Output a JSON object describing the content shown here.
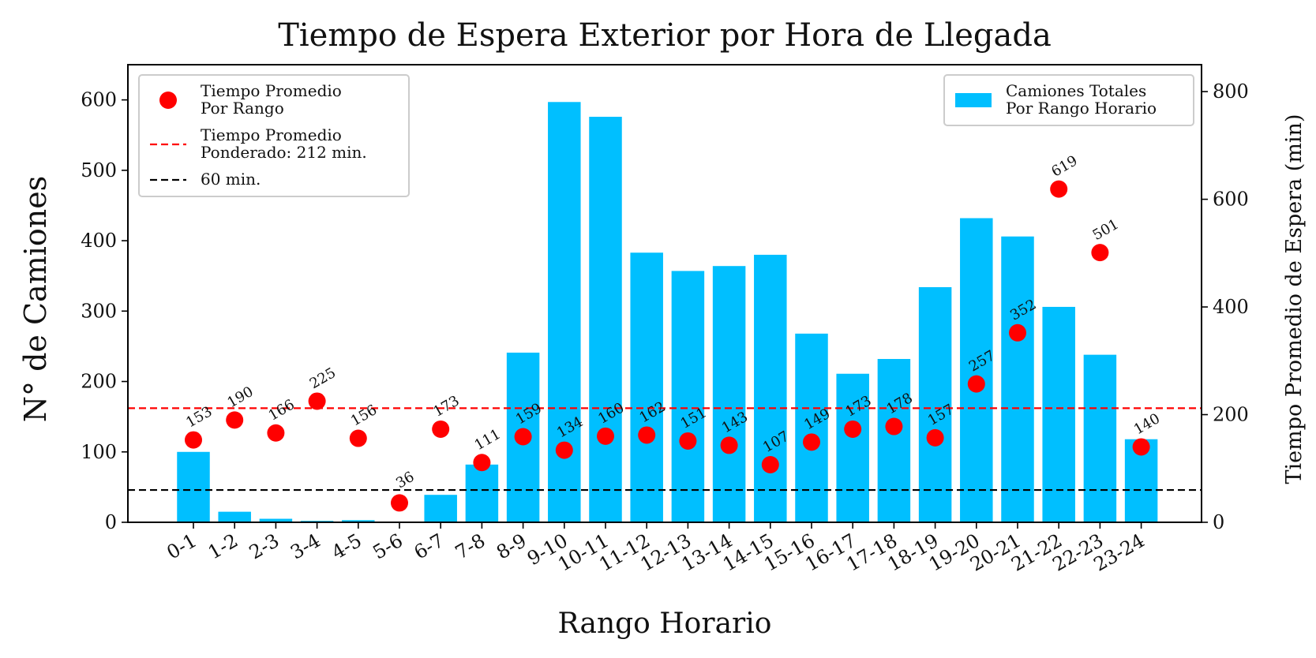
{
  "chart_data": {
    "type": "bar",
    "title": "Tiempo de Espera Exterior por Hora de Llegada",
    "xlabel": "Rango Horario",
    "ylabel": "N° de Camiones",
    "y2label": "Tiempo Promedio de Espera (min)",
    "categories": [
      "0-1",
      "1-2",
      "2-3",
      "3-4",
      "4-5",
      "5-6",
      "6-7",
      "7-8",
      "8-9",
      "9-10",
      "10-11",
      "11-12",
      "12-13",
      "13-14",
      "14-15",
      "15-16",
      "16-17",
      "17-18",
      "18-19",
      "19-20",
      "20-21",
      "21-22",
      "22-23",
      "23-24"
    ],
    "ylim": [
      0,
      650
    ],
    "y2lim": [
      0,
      850
    ],
    "yticks": [
      0,
      100,
      200,
      300,
      400,
      500,
      600
    ],
    "y2ticks": [
      0,
      200,
      400,
      600,
      800
    ],
    "grid": false,
    "series": [
      {
        "name": "Camiones Totales Por Rango Horario",
        "axis": "left",
        "type": "bar",
        "color": "#00bfff",
        "values": [
          100,
          15,
          5,
          2,
          3,
          0,
          39,
          82,
          241,
          597,
          576,
          383,
          357,
          364,
          380,
          268,
          211,
          232,
          334,
          432,
          406,
          306,
          238,
          118
        ]
      },
      {
        "name": "Tiempo Promedio Por Rango",
        "axis": "right",
        "type": "scatter",
        "color": "#ff0000",
        "values": [
          153,
          190,
          166,
          225,
          156,
          36,
          173,
          111,
          159,
          134,
          160,
          162,
          151,
          143,
          107,
          149,
          173,
          178,
          157,
          257,
          352,
          619,
          501,
          140
        ],
        "labels": [
          "153",
          "190",
          "166",
          "225",
          "156",
          "36",
          "173",
          "111",
          "159",
          "134",
          "160",
          "162",
          "151",
          "143",
          "107",
          "149",
          "173",
          "178",
          "157",
          "257",
          "352",
          "619",
          "501",
          "140"
        ]
      }
    ],
    "reference_lines": [
      {
        "name": "Tiempo Promedio Ponderado: 212 min.",
        "axis": "right",
        "value": 212,
        "color": "#ff0000",
        "style": "dashed"
      },
      {
        "name": "60 min.",
        "axis": "right",
        "value": 60,
        "color": "#000000",
        "style": "dashed"
      }
    ],
    "legend_left": {
      "placement": "top-left",
      "entries": [
        {
          "kind": "marker",
          "color": "#ff0000",
          "lines": [
            "Tiempo Promedio",
            "Por Rango"
          ]
        },
        {
          "kind": "dashed",
          "color": "#ff0000",
          "lines": [
            "Tiempo Promedio",
            "Ponderado: 212 min."
          ]
        },
        {
          "kind": "dashed",
          "color": "#000000",
          "lines": [
            "60 min."
          ]
        }
      ]
    },
    "legend_right": {
      "placement": "top-right",
      "entries": [
        {
          "kind": "patch",
          "color": "#00bfff",
          "lines": [
            "Camiones Totales",
            "Por Rango Horario"
          ]
        }
      ]
    }
  }
}
